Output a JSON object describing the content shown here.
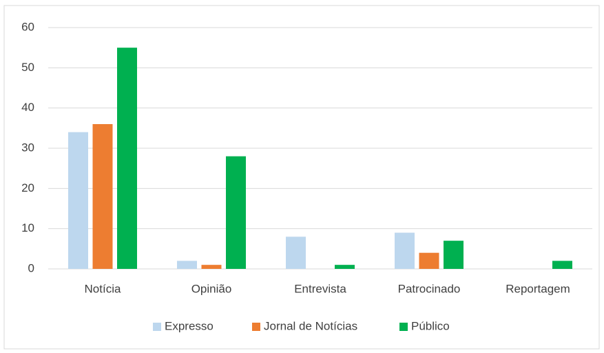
{
  "chart_data": {
    "type": "bar",
    "categories": [
      "Notícia",
      "Opinião",
      "Entrevista",
      "Patrocinado",
      "Reportagem"
    ],
    "series": [
      {
        "name": "Expresso",
        "color": "#bdd7ee",
        "values": [
          34,
          2,
          8,
          9,
          0
        ]
      },
      {
        "name": "Jornal de Notícias",
        "color": "#ed7d31",
        "values": [
          36,
          1,
          0,
          4,
          0
        ]
      },
      {
        "name": "Público",
        "color": "#00b050",
        "values": [
          55,
          28,
          1,
          7,
          2
        ]
      }
    ],
    "ylim": [
      0,
      60
    ],
    "yticks": [
      0,
      10,
      20,
      30,
      40,
      50,
      60
    ],
    "grid": true,
    "legend": "bottom"
  }
}
